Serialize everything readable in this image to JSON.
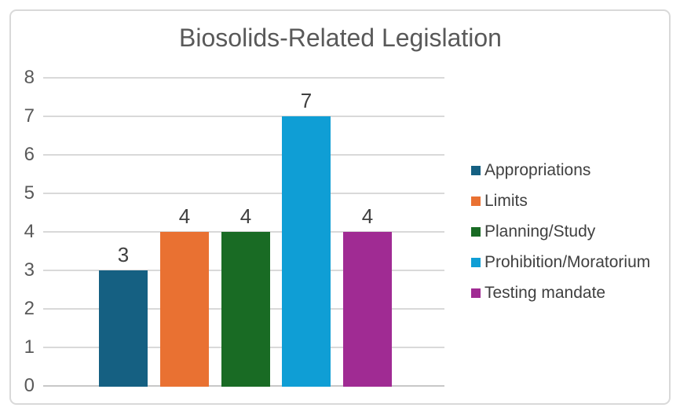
{
  "chart_data": {
    "type": "bar",
    "title": "Biosolids-Related Legislation",
    "categories": [
      "Appropriations",
      "Limits",
      "Planning/Study",
      "Prohibition/Moratorium",
      "Testing mandate"
    ],
    "values": [
      3,
      4,
      4,
      7,
      4
    ],
    "data_labels": [
      "3",
      "4",
      "4",
      "7",
      "4"
    ],
    "series_colors": [
      "#156082",
      "#E97132",
      "#196B24",
      "#0F9ED5",
      "#A02B93"
    ],
    "xlabel": "",
    "ylabel": "",
    "ylim": [
      0,
      8
    ],
    "yticks": [
      "0",
      "1",
      "2",
      "3",
      "4",
      "5",
      "6",
      "7",
      "8"
    ],
    "grid": true,
    "legend_position": "right",
    "legend_entries": [
      "Appropriations",
      "Limits",
      "Planning/Study",
      "Prohibition/Moratorium",
      "Testing mandate"
    ]
  },
  "style": {
    "background": "#FFFFFF",
    "frame_border": "#D9D9D9",
    "gridline": "#D9D9D9",
    "axis_line": "#C8C8C8",
    "title_color": "#595959",
    "tick_color": "#595959",
    "data_label_color": "#404040",
    "legend_text_color": "#404040"
  }
}
